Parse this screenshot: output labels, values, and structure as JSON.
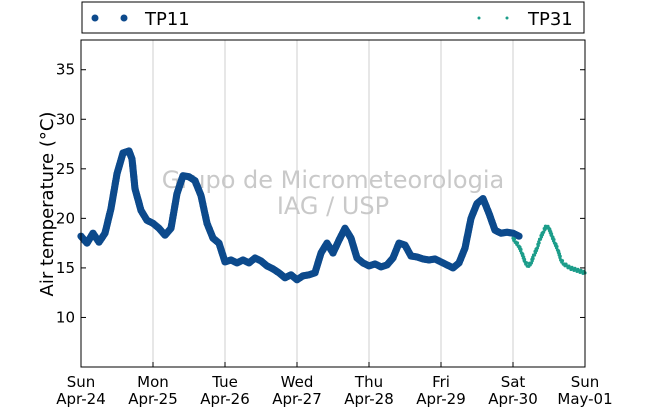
{
  "chart_data": {
    "type": "scatter",
    "title": "",
    "xlabel": "",
    "ylabel": "Air temperature (°C)",
    "ylim": [
      5,
      38
    ],
    "yticks": [
      10,
      15,
      20,
      25,
      30,
      35
    ],
    "xlim": [
      "2022-04-24T00:00",
      "2022-05-01T00:00"
    ],
    "xticks": [
      {
        "day": "Sun",
        "date": "Apr-24"
      },
      {
        "day": "Mon",
        "date": "Apr-25"
      },
      {
        "day": "Tue",
        "date": "Apr-26"
      },
      {
        "day": "Wed",
        "date": "Apr-27"
      },
      {
        "day": "Thu",
        "date": "Apr-28"
      },
      {
        "day": "Fri",
        "date": "Apr-29"
      },
      {
        "day": "Sat",
        "date": "Apr-30"
      },
      {
        "day": "Sun",
        "date": "May-01"
      }
    ],
    "grid": "vertical",
    "legend": "top",
    "watermark": [
      "Grupo de Micrometeorologia",
      "IAG / USP"
    ],
    "series": [
      {
        "name": "TP11",
        "color": "#0d4a8c",
        "marker": "large-dot",
        "x": [
          "2022-04-24T00:00",
          "2022-04-24T02:00",
          "2022-04-24T04:00",
          "2022-04-24T06:00",
          "2022-04-24T08:00",
          "2022-04-24T10:00",
          "2022-04-24T12:00",
          "2022-04-24T14:00",
          "2022-04-24T16:00",
          "2022-04-24T17:00",
          "2022-04-24T18:00",
          "2022-04-24T20:00",
          "2022-04-24T22:00",
          "2022-04-25T00:00",
          "2022-04-25T02:00",
          "2022-04-25T04:00",
          "2022-04-25T06:00",
          "2022-04-25T08:00",
          "2022-04-25T10:00",
          "2022-04-25T12:00",
          "2022-04-25T14:00",
          "2022-04-25T16:00",
          "2022-04-25T18:00",
          "2022-04-25T20:00",
          "2022-04-25T22:00",
          "2022-04-26T00:00",
          "2022-04-26T02:00",
          "2022-04-26T04:00",
          "2022-04-26T06:00",
          "2022-04-26T08:00",
          "2022-04-26T10:00",
          "2022-04-26T12:00",
          "2022-04-26T14:00",
          "2022-04-26T16:00",
          "2022-04-26T18:00",
          "2022-04-26T20:00",
          "2022-04-26T22:00",
          "2022-04-27T00:00",
          "2022-04-27T02:00",
          "2022-04-27T04:00",
          "2022-04-27T06:00",
          "2022-04-27T08:00",
          "2022-04-27T10:00",
          "2022-04-27T12:00",
          "2022-04-27T14:00",
          "2022-04-27T16:00",
          "2022-04-27T18:00",
          "2022-04-27T20:00",
          "2022-04-27T22:00",
          "2022-04-28T00:00",
          "2022-04-28T02:00",
          "2022-04-28T04:00",
          "2022-04-28T06:00",
          "2022-04-28T08:00",
          "2022-04-28T10:00",
          "2022-04-28T12:00",
          "2022-04-28T14:00",
          "2022-04-28T16:00",
          "2022-04-28T18:00",
          "2022-04-28T20:00",
          "2022-04-28T22:00",
          "2022-04-29T00:00",
          "2022-04-29T02:00",
          "2022-04-29T04:00",
          "2022-04-29T06:00",
          "2022-04-29T08:00",
          "2022-04-29T10:00",
          "2022-04-29T12:00",
          "2022-04-29T14:00",
          "2022-04-29T16:00",
          "2022-04-29T18:00",
          "2022-04-29T20:00",
          "2022-04-29T22:00",
          "2022-04-30T00:00",
          "2022-04-30T02:00"
        ],
        "y": [
          18.2,
          17.5,
          18.5,
          17.6,
          18.5,
          21.0,
          24.5,
          26.6,
          26.8,
          26.0,
          23.0,
          20.8,
          19.8,
          19.5,
          19.0,
          18.3,
          19.0,
          22.5,
          24.3,
          24.2,
          23.8,
          22.3,
          19.5,
          18.0,
          17.5,
          15.6,
          15.8,
          15.5,
          15.8,
          15.5,
          16.0,
          15.7,
          15.2,
          14.9,
          14.5,
          14.0,
          14.3,
          13.8,
          14.2,
          14.3,
          14.5,
          16.5,
          17.5,
          16.5,
          17.8,
          19.0,
          18.0,
          16.0,
          15.5,
          15.2,
          15.4,
          15.1,
          15.3,
          16.0,
          17.5,
          17.3,
          16.2,
          16.1,
          15.9,
          15.8,
          15.9,
          15.6,
          15.3,
          15.0,
          15.5,
          17.0,
          20.0,
          21.5,
          22.0,
          20.5,
          18.8,
          18.5,
          18.6,
          18.5,
          18.2
        ]
      },
      {
        "name": "TP31",
        "color": "#1c9d8a",
        "marker": "small-dot",
        "x": [
          "2022-04-30T00:00",
          "2022-04-30T01:00",
          "2022-04-30T02:00",
          "2022-04-30T03:00",
          "2022-04-30T04:00",
          "2022-04-30T05:00",
          "2022-04-30T06:00",
          "2022-04-30T07:00",
          "2022-04-30T08:00",
          "2022-04-30T09:00",
          "2022-04-30T10:00",
          "2022-04-30T11:00",
          "2022-04-30T12:00",
          "2022-04-30T13:00",
          "2022-04-30T14:00",
          "2022-04-30T15:00",
          "2022-04-30T16:00",
          "2022-04-30T17:00",
          "2022-04-30T18:00",
          "2022-04-30T19:00",
          "2022-04-30T20:00",
          "2022-04-30T21:00",
          "2022-04-30T22:00",
          "2022-04-30T23:00",
          "2022-05-01T00:00"
        ],
        "y": [
          18.0,
          17.6,
          17.2,
          16.5,
          15.6,
          15.2,
          15.5,
          16.3,
          17.0,
          17.9,
          18.6,
          19.2,
          19.0,
          18.2,
          17.5,
          16.8,
          15.8,
          15.4,
          15.2,
          15.0,
          14.9,
          14.8,
          14.7,
          14.6,
          14.5
        ]
      }
    ]
  }
}
